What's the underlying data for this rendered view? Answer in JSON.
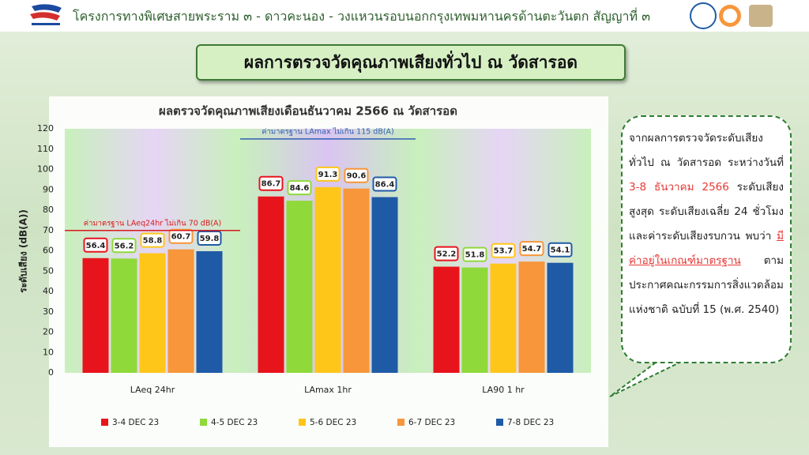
{
  "header": {
    "title": "โครงการทางพิเศษสายพระราม ๓ - ดาวคะนอง - วงแหวนรอบนอกกรุงเทพมหานครด้านตะวันตก สัญญาที่ ๓"
  },
  "banner": {
    "title": "ผลการตรวจวัดคุณภาพเสียงทั่วไป  ณ วัดสารอด"
  },
  "chart_data": {
    "type": "bar",
    "title": "ผลตรวจวัดคุณภาพเสียงเดือนธันวาคม 2566 ณ วัดสารอด",
    "y_label": "ระดับเสียง (dB(A))",
    "categories": [
      "LAeq 24hr",
      "LAmax 1hr",
      "LA90 1 hr"
    ],
    "series": [
      {
        "name": "3-4  DEC 23",
        "color": "#e8141c",
        "values": [
          56.4,
          86.7,
          52.2
        ]
      },
      {
        "name": "4-5 DEC 23",
        "color": "#8fd93a",
        "values": [
          56.2,
          84.6,
          51.8
        ]
      },
      {
        "name": "5-6 DEC 23",
        "color": "#ffc61a",
        "values": [
          58.8,
          91.3,
          53.7
        ]
      },
      {
        "name": "6-7 DEC 23",
        "color": "#f7963a",
        "values": [
          60.7,
          90.6,
          54.7
        ]
      },
      {
        "name": "7-8 DEC  23",
        "color": "#1f5aa6",
        "values": [
          59.8,
          86.4,
          54.1
        ]
      }
    ],
    "reference_lines": [
      {
        "label": "ค่ามาตรฐาน  LAeq24hr ไม่เกิน 70 dB(A)",
        "value": 70,
        "color": "#d7191c"
      },
      {
        "label": "ค่ามาตรฐาน  LAmax ไม่เกิน 115 dB(A)",
        "value": 115,
        "color": "#2f5fb3"
      }
    ],
    "ylim": [
      0,
      120
    ],
    "yticks": [
      0,
      10,
      20,
      30,
      40,
      50,
      60,
      70,
      80,
      90,
      100,
      110,
      120
    ],
    "grid": false,
    "legend": "bottom"
  },
  "callout": {
    "parts": [
      "จากผลการตรวจวัดระดับเสียงทั่วไป ณ วัดสารอด ระหว่างวันที่ ",
      "3-8 ธันวาคม 2566",
      " ระดับเสียงสูงสุด ระดับเสียงเฉลี่ย 24 ชั่วโมง และค่าระดับเสียงรบกวน พบว่า ",
      "มีค่าอยู่ในเกณฑ์มาตรฐาน",
      " ตามประกาศคณะกรรมการสิ่งแวดล้อมแห่งชาติ ฉบับที่ 15 (พ.ศ. 2540)"
    ]
  }
}
